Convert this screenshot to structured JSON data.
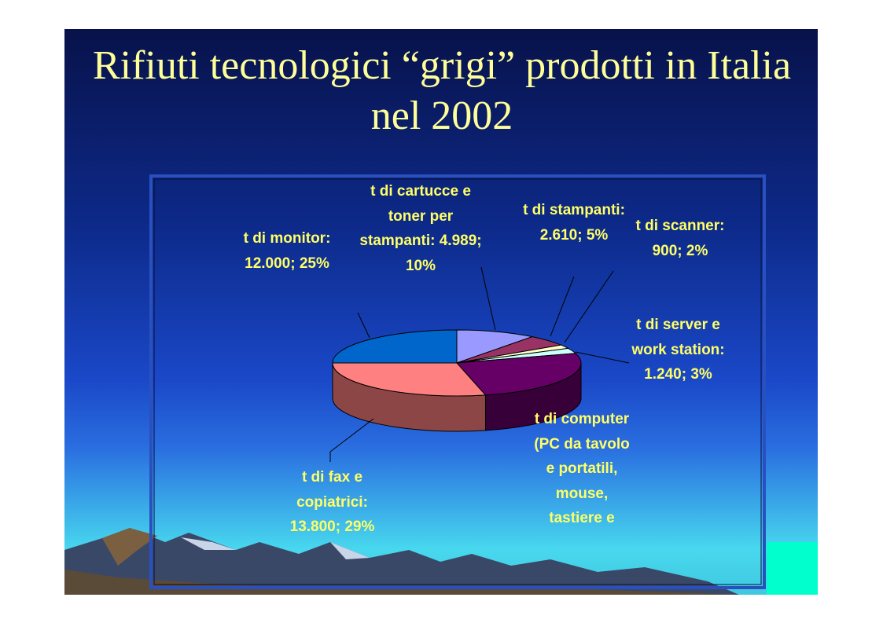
{
  "chart_data": {
    "type": "pie",
    "title": "Rifiuti tecnologici “grigi” prodotti in Italia nel 2002",
    "categories": [
      "t di cartucce e toner per stampanti:",
      "t di stampanti:",
      "t di scanner:",
      "t di server e work station:",
      "t di computer (PC da tavolo e portatili, mouse, tastiere e",
      "t di fax e copiatrici:",
      "t di monitor:"
    ],
    "values": [
      4989,
      2610,
      900,
      1240,
      12500,
      13800,
      12000
    ],
    "value_labels": [
      "4.989; 10%",
      "2.610; 5%",
      "900; 2%",
      "1.240; 3%",
      null,
      "13.800; 29%",
      "12.000; 25%"
    ],
    "colors": [
      "#9999ff",
      "#993366",
      "#ffffcc",
      "#ccffff",
      "#660066",
      "#ff8080",
      "#0066cc"
    ]
  }
}
